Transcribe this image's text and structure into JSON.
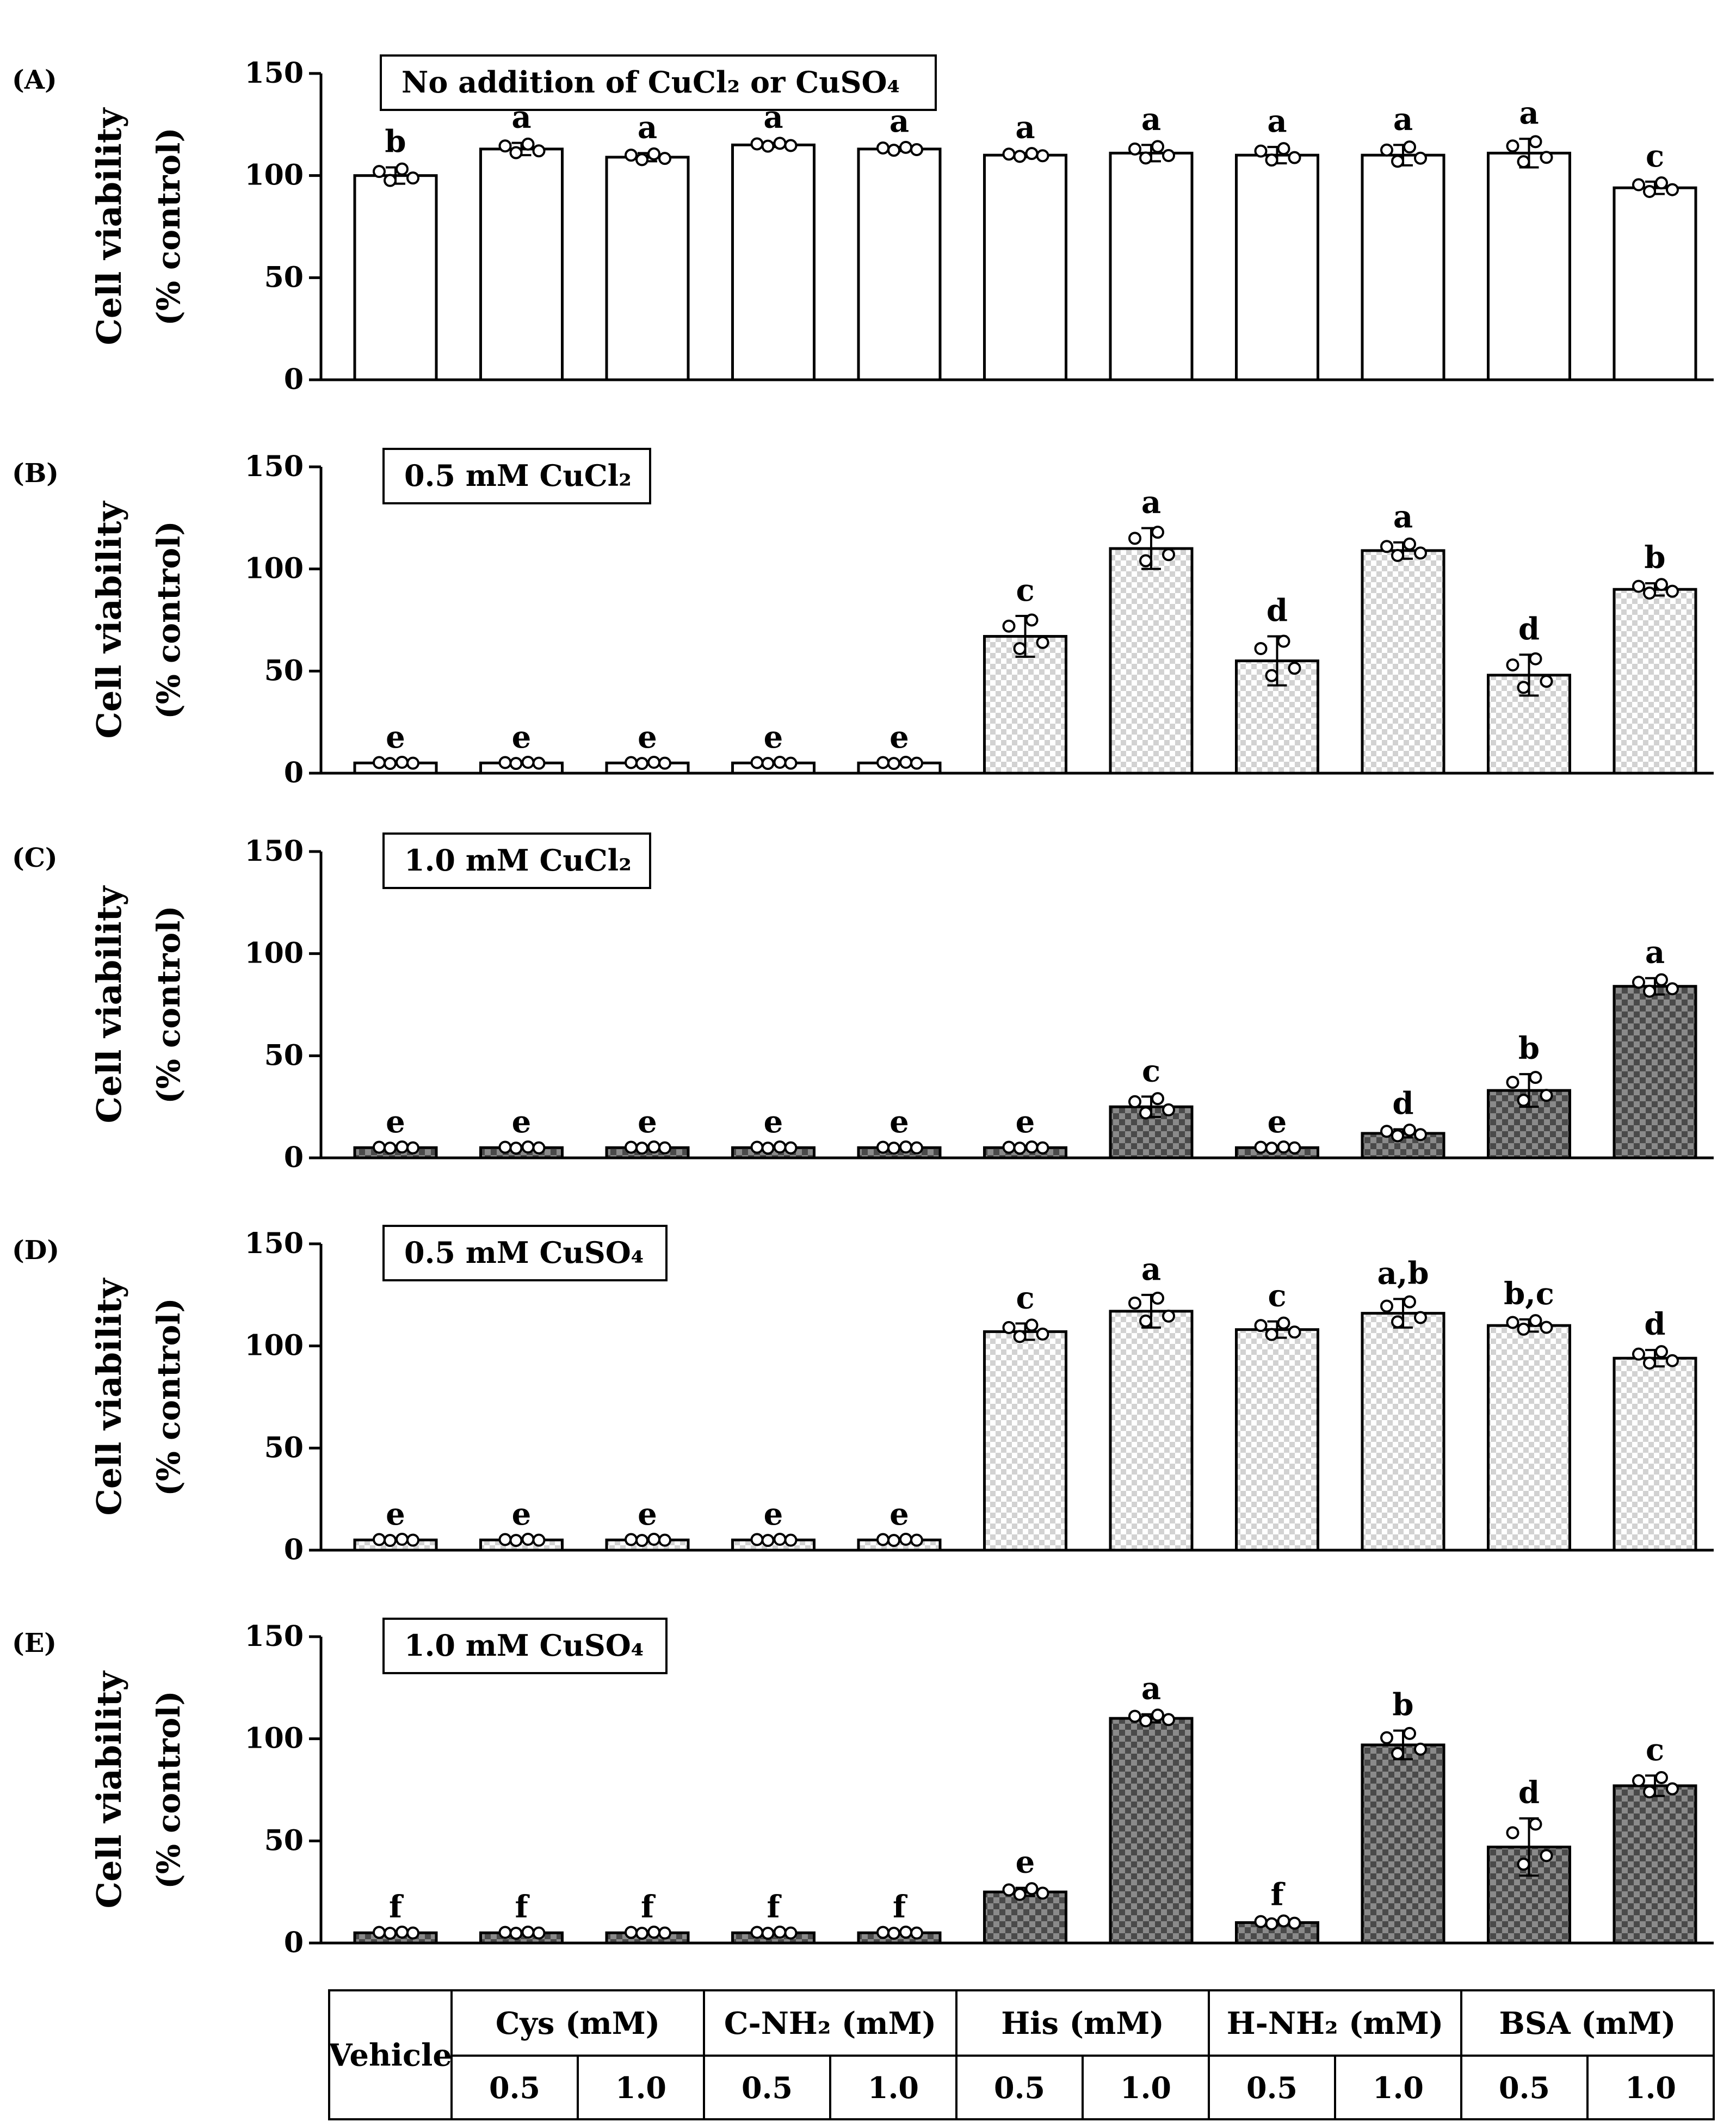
{
  "colors": {
    "ink": "#000000",
    "light_check": "#d2d2d2",
    "dark_check": "#555555",
    "open_fill": "#ffffff"
  },
  "y_axis_label_line1": "Cell viability",
  "y_axis_label_line2": "(% control)",
  "chart_data": [
    {
      "type": "bar",
      "panel": "(A)",
      "title": "No addition of CuCl₂ or CuSO₄",
      "fill": "open",
      "categories": [
        "Vehicle",
        "Cys 0.5",
        "Cys 1.0",
        "C-NH₂ 0.5",
        "C-NH₂ 1.0",
        "His 0.5",
        "His 1.0",
        "H-NH₂ 0.5",
        "H-NH₂ 1.0",
        "BSA 0.5",
        "BSA 1.0"
      ],
      "values": [
        100,
        113,
        109,
        115,
        113,
        110,
        111,
        110,
        110,
        111,
        94
      ],
      "errors": [
        4,
        3,
        2,
        1,
        1,
        1,
        4,
        4,
        5,
        7,
        3
      ],
      "letters": [
        "b",
        "a",
        "a",
        "a",
        "a",
        "a",
        "a",
        "a",
        "a",
        "a",
        "c"
      ],
      "ylim": [
        0,
        150
      ],
      "yticks": [
        "0",
        "50",
        "100",
        "150"
      ],
      "ylabel": "Cell viability (% control)"
    },
    {
      "type": "bar",
      "panel": "(B)",
      "title": "0.5 mM CuCl₂",
      "fills": [
        "open",
        "open",
        "open",
        "open",
        "open",
        "light",
        "light",
        "light",
        "light",
        "light",
        "light"
      ],
      "categories": [
        "Vehicle",
        "Cys 0.5",
        "Cys 1.0",
        "C-NH₂ 0.5",
        "C-NH₂ 1.0",
        "His 0.5",
        "His 1.0",
        "H-NH₂ 0.5",
        "H-NH₂ 1.0",
        "BSA 0.5",
        "BSA 1.0"
      ],
      "values": [
        5,
        5,
        5,
        5,
        5,
        67,
        110,
        55,
        109,
        48,
        90
      ],
      "errors": [
        0,
        0,
        0,
        0,
        0,
        10,
        10,
        12,
        4,
        10,
        3
      ],
      "letters": [
        "e",
        "e",
        "e",
        "e",
        "e",
        "c",
        "a",
        "d",
        "a",
        "d",
        "b"
      ],
      "ylim": [
        0,
        150
      ],
      "yticks": [
        "0",
        "50",
        "100",
        "150"
      ],
      "ylabel": "Cell viability (% control)"
    },
    {
      "type": "bar",
      "panel": "(C)",
      "title": "1.0 mM CuCl₂",
      "fills": [
        "dark",
        "dark",
        "dark",
        "dark",
        "dark",
        "dark",
        "dark",
        "dark",
        "dark",
        "dark",
        "dark"
      ],
      "categories": [
        "Vehicle",
        "Cys 0.5",
        "Cys 1.0",
        "C-NH₂ 0.5",
        "C-NH₂ 1.0",
        "His 0.5",
        "His 1.0",
        "H-NH₂ 0.5",
        "H-NH₂ 1.0",
        "BSA 0.5",
        "BSA 1.0"
      ],
      "values": [
        5,
        5,
        5,
        5,
        5,
        5,
        25,
        5,
        12,
        33,
        84
      ],
      "errors": [
        0,
        0,
        0,
        0,
        0,
        0,
        5,
        0,
        2,
        8,
        4
      ],
      "letters": [
        "e",
        "e",
        "e",
        "e",
        "e",
        "e",
        "c",
        "e",
        "d",
        "b",
        "a"
      ],
      "ylim": [
        0,
        150
      ],
      "yticks": [
        "0",
        "50",
        "100",
        "150"
      ],
      "ylabel": "Cell viability (% control)"
    },
    {
      "type": "bar",
      "panel": "(D)",
      "title": "0.5 mM CuSO₄",
      "fills": [
        "light",
        "light",
        "light",
        "light",
        "light",
        "light",
        "light",
        "light",
        "light",
        "light",
        "light"
      ],
      "categories": [
        "Vehicle",
        "Cys 0.5",
        "Cys 1.0",
        "C-NH₂ 0.5",
        "C-NH₂ 1.0",
        "His 0.5",
        "His 1.0",
        "H-NH₂ 0.5",
        "H-NH₂ 1.0",
        "BSA 0.5",
        "BSA 1.0"
      ],
      "values": [
        5,
        5,
        5,
        5,
        5,
        107,
        117,
        108,
        116,
        110,
        94
      ],
      "errors": [
        0,
        0,
        0,
        0,
        0,
        4,
        8,
        4,
        7,
        3,
        4
      ],
      "letters": [
        "e",
        "e",
        "e",
        "e",
        "e",
        "c",
        "a",
        "c",
        "a,b",
        "b,c",
        "d"
      ],
      "ylim": [
        0,
        150
      ],
      "yticks": [
        "0",
        "50",
        "100",
        "150"
      ],
      "ylabel": "Cell viability (% control)"
    },
    {
      "type": "bar",
      "panel": "(E)",
      "title": "1.0 mM CuSO₄",
      "fills": [
        "dark",
        "dark",
        "dark",
        "dark",
        "dark",
        "dark",
        "dark",
        "dark",
        "dark",
        "dark",
        "dark"
      ],
      "categories": [
        "Vehicle",
        "Cys 0.5",
        "Cys 1.0",
        "C-NH₂ 0.5",
        "C-NH₂ 1.0",
        "His 0.5",
        "His 1.0",
        "H-NH₂ 0.5",
        "H-NH₂ 1.0",
        "BSA 0.5",
        "BSA 1.0"
      ],
      "values": [
        5,
        5,
        5,
        5,
        5,
        25,
        110,
        10,
        97,
        47,
        77
      ],
      "errors": [
        0,
        0,
        0,
        0,
        0,
        2,
        2,
        1,
        7,
        14,
        5
      ],
      "letters": [
        "f",
        "f",
        "f",
        "f",
        "f",
        "e",
        "a",
        "f",
        "b",
        "d",
        "c"
      ],
      "ylim": [
        0,
        150
      ],
      "yticks": [
        "0",
        "50",
        "100",
        "150"
      ],
      "ylabel": "Cell viability (% control)"
    }
  ],
  "table": {
    "vehicle_label": "Vehicle",
    "groups": [
      "Cys (mM)",
      "C-NH₂ (mM)",
      "His (mM)",
      "H-NH₂ (mM)",
      "BSA (mM)"
    ],
    "concentrations": [
      "0.5",
      "1.0",
      "0.5",
      "1.0",
      "0.5",
      "1.0",
      "0.5",
      "1.0",
      "0.5",
      "1.0"
    ]
  }
}
